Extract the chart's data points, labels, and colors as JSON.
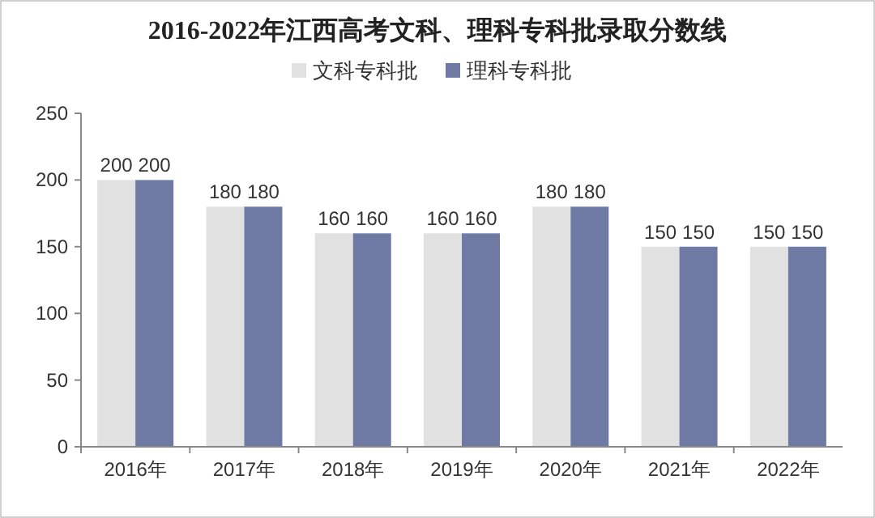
{
  "chart_data": {
    "type": "bar",
    "title": "2016-2022年江西高考文科、理科专科批录取分数线",
    "categories": [
      "2016年",
      "2017年",
      "2018年",
      "2019年",
      "2020年",
      "2021年",
      "2022年"
    ],
    "series": [
      {
        "name": "文科专科批",
        "color": "#e0e1e0",
        "values": [
          200,
          180,
          160,
          160,
          180,
          150,
          150
        ]
      },
      {
        "name": "理科专科批",
        "color": "#6e7aa4",
        "values": [
          200,
          180,
          160,
          160,
          180,
          150,
          150
        ]
      }
    ],
    "ylim": [
      0,
      250
    ],
    "yticks": [
      0,
      50,
      100,
      150,
      200,
      250
    ],
    "grid": false,
    "legend": "top",
    "data_labels": true
  }
}
